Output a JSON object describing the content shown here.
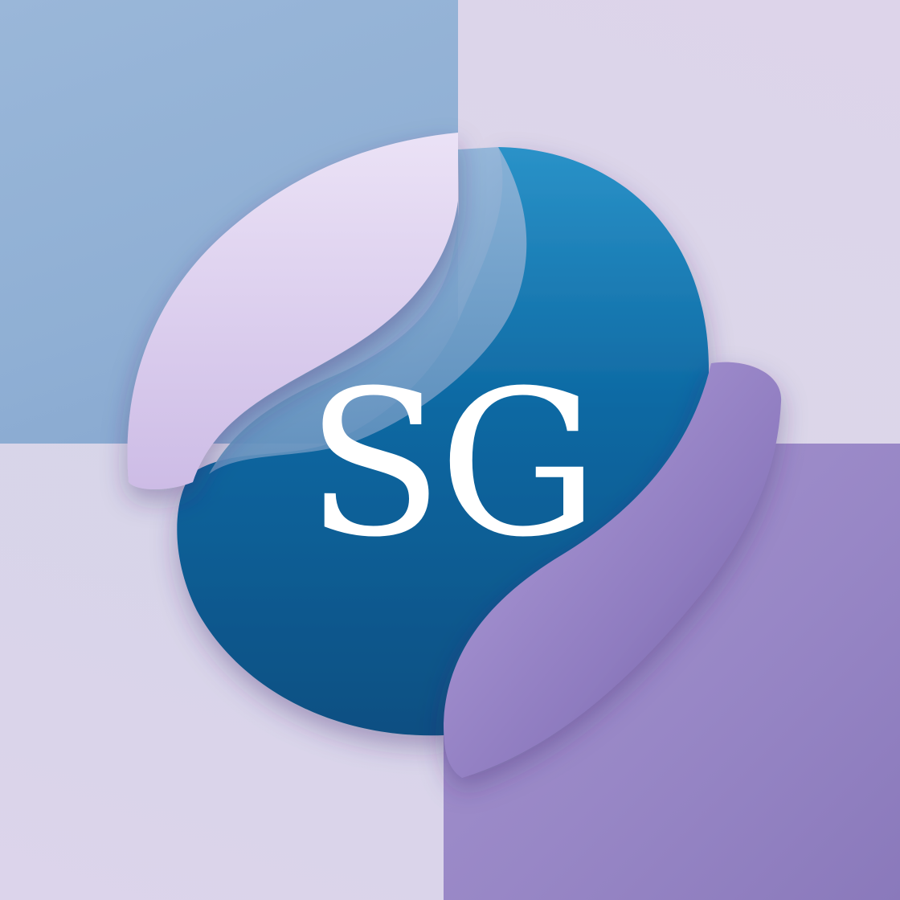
{
  "logo": {
    "monogram": "SG",
    "colors": {
      "deep_blue": "#0b5e94",
      "sky_blue": "#94b4d8",
      "lavender": "#e4dbf2",
      "violet": "#9485c6",
      "text": "#ffffff"
    }
  }
}
